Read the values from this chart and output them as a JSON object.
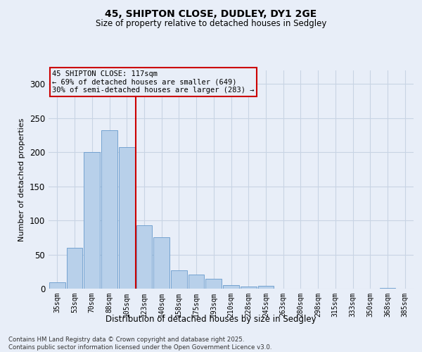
{
  "title1": "45, SHIPTON CLOSE, DUDLEY, DY1 2GE",
  "title2": "Size of property relative to detached houses in Sedgley",
  "xlabel": "Distribution of detached houses by size in Sedgley",
  "ylabel": "Number of detached properties",
  "categories": [
    "35sqm",
    "53sqm",
    "70sqm",
    "88sqm",
    "105sqm",
    "123sqm",
    "140sqm",
    "158sqm",
    "175sqm",
    "193sqm",
    "210sqm",
    "228sqm",
    "245sqm",
    "263sqm",
    "280sqm",
    "298sqm",
    "315sqm",
    "333sqm",
    "350sqm",
    "368sqm",
    "385sqm"
  ],
  "values": [
    9,
    60,
    200,
    232,
    208,
    93,
    75,
    27,
    21,
    14,
    5,
    3,
    4,
    0,
    0,
    0,
    0,
    0,
    0,
    1,
    0
  ],
  "bar_color": "#b8d0ea",
  "bar_edge_color": "#6699cc",
  "grid_color": "#c8d4e4",
  "background_color": "#e8eef8",
  "vline_color": "#cc0000",
  "annotation_text": "45 SHIPTON CLOSE: 117sqm\n← 69% of detached houses are smaller (649)\n30% of semi-detached houses are larger (283) →",
  "annotation_box_color": "#cc0000",
  "footer": "Contains HM Land Registry data © Crown copyright and database right 2025.\nContains public sector information licensed under the Open Government Licence v3.0.",
  "ylim": [
    0,
    320
  ],
  "yticks": [
    0,
    50,
    100,
    150,
    200,
    250,
    300
  ]
}
